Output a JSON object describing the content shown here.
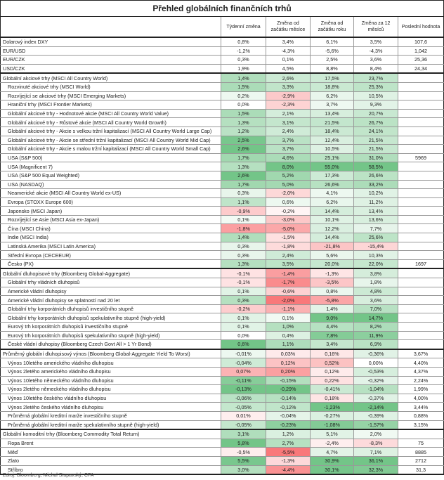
{
  "title": "Přehled globálních finančních trhů",
  "columns": [
    "Týdenní změna",
    "Změna od začátku měsíce",
    "Změna od začátku roku",
    "Změna za 12 měsíců",
    "Poslední hodnota"
  ],
  "colors": {
    "green": "#63be7b",
    "red": "#f8696b",
    "neutral": "#ffffff"
  },
  "sections": [
    {
      "id": "fx",
      "colored": false,
      "rows": [
        [
          "Dolarový index DXY",
          "0,8%",
          "3,4%",
          "6,1%",
          "3,5%",
          "107,6"
        ],
        [
          "EUR/USD",
          "-1,2%",
          "-4,3%",
          "-5,6%",
          "-4,3%",
          "1,042"
        ],
        [
          "EUR/CZK",
          "0,3%",
          "0,1%",
          "2,5%",
          "3,6%",
          "25,36"
        ],
        [
          "USD/CZK",
          "1,9%",
          "4,5%",
          "8,8%",
          "8,4%",
          "24,34"
        ]
      ]
    },
    {
      "id": "equity",
      "colored": true,
      "rows": [
        [
          "Globální akciové trhy (MSCI All Country World)",
          "1,4%",
          "2,6%",
          "17,5%",
          "23,7%",
          ""
        ],
        [
          "Rozvinuté akciové trhy (MSCI World)",
          "1,5%",
          "3,3%",
          "18,8%",
          "25,3%",
          ""
        ],
        [
          "Rozvíjející se akciové trhy (MSCI Emerging Markets)",
          "0,2%",
          "-2,9%",
          "6,2%",
          "10,5%",
          ""
        ],
        [
          "Hraniční trhy (MSCI Frontier Markets)",
          "0,0%",
          "-2,3%",
          "3,7%",
          "9,3%",
          ""
        ],
        [
          "Globální akciové trhy - Hodnotové akcie (MSCI All Country World Value)",
          "1,5%",
          "2,1%",
          "13,4%",
          "20,7%",
          ""
        ],
        [
          "Globální akciové trhy - Růstové akcie (MSCI All Country World Growth)",
          "1,3%",
          "3,1%",
          "21,5%",
          "26,7%",
          ""
        ],
        [
          "Globální akciové trhy - Akcie s velkou tržní kapitalizací (MSCI All Country World Large Cap)",
          "1,2%",
          "2,4%",
          "18,4%",
          "24,1%",
          ""
        ],
        [
          "Globální akciové trhy - Akcie se střední tržní kapitalizací (MSCI All Country World Mid Cap)",
          "2,5%",
          "3,7%",
          "12,4%",
          "21,5%",
          ""
        ],
        [
          "Globální akciové trhy - Akcie s malou tržní kapitalizací (MSCI All Country World Small Cap)",
          "2,6%",
          "3,7%",
          "10,5%",
          "21,5%",
          ""
        ],
        [
          "USA (S&P 500)",
          "1,7%",
          "4,6%",
          "25,1%",
          "31,0%",
          "5969"
        ],
        [
          "USA (Magnificent 7)",
          "1,3%",
          "8,0%",
          "55,0%",
          "58,5%",
          ""
        ],
        [
          "USA (S&P 500 Equal Weighted)",
          "2,6%",
          "5,2%",
          "17,3%",
          "26,6%",
          ""
        ],
        [
          "USA (NASDAQ)",
          "1,7%",
          "5,0%",
          "26,6%",
          "33,2%",
          ""
        ],
        [
          "Neamerické akcie (MSCI All Country World ex-US)",
          "0,3%",
          "-2,0%",
          "4,1%",
          "10,2%",
          ""
        ],
        [
          "Evropa (STOXX Europe 600)",
          "1,1%",
          "0,6%",
          "6,2%",
          "11,2%",
          ""
        ],
        [
          "Japonsko (MSCI Japan)",
          "-0,9%",
          "-0,2%",
          "14,4%",
          "13,4%",
          ""
        ],
        [
          "Rozvíjející se Asie (MSCI Asia ex-Japan)",
          "0,1%",
          "-3,0%",
          "10,1%",
          "13,6%",
          ""
        ],
        [
          "Čína (MSCI China)",
          "-1,8%",
          "-5,0%",
          "12,2%",
          "7,7%",
          ""
        ],
        [
          "Indie (MSCI India)",
          "1,4%",
          "-1,5%",
          "14,4%",
          "25,6%",
          ""
        ],
        [
          "Latinská Amerika (MSCI Latin America)",
          "0,3%",
          "-1,8%",
          "-21,8%",
          "-15,4%",
          ""
        ],
        [
          "Střední Evropa (CECEEUR)",
          "0,3%",
          "2,4%",
          "5,6%",
          "10,3%",
          ""
        ],
        [
          "Česko (PX)",
          "1,3%",
          "3,5%",
          "20,0%",
          "22,0%",
          "1697"
        ]
      ]
    },
    {
      "id": "bonds",
      "colored": true,
      "rows": [
        [
          "Globální dluhopisové trhy (Bloomberg Global-Aggregate)",
          "-0,1%",
          "-1,4%",
          "-1,3%",
          "3,8%",
          ""
        ],
        [
          "Globální trhy vládních dluhopisů",
          "-0,1%",
          "-1,7%",
          "-3,5%",
          "1,8%",
          ""
        ],
        [
          "Americké vládní dluhopisy",
          "0,1%",
          "-0,6%",
          "0,8%",
          "4,8%",
          ""
        ],
        [
          "Americké vládní dluhopisy se splatností nad 20 let",
          "0,3%",
          "-2,0%",
          "-5,8%",
          "3,6%",
          ""
        ],
        [
          "Globální trhy korporátních dluhopisů investičního stupně",
          "-0,2%",
          "-1,1%",
          "1,4%",
          "7,0%",
          ""
        ],
        [
          "Globální trhy korporátních dluhopisů spekulativního stupně (high-yield)",
          "0,1%",
          "0,1%",
          "9,0%",
          "14,7%",
          ""
        ],
        [
          "Eurový trh korporátních dluhopisů investičního stupně",
          "0,1%",
          "1,0%",
          "4,4%",
          "8,2%",
          ""
        ],
        [
          "Eurový trh korporátních dluhopisů spekulativního stupně (high-yield)",
          "0,0%",
          "0,4%",
          "7,8%",
          "11,9%",
          ""
        ],
        [
          "České vládní dluhopisy (Bloomberg Czech Govt All > 1 Yr Bond)",
          "0,6%",
          "1,1%",
          "3,4%",
          "6,9%",
          ""
        ]
      ]
    },
    {
      "id": "yields",
      "colored": true,
      "inverted": true,
      "rows": [
        [
          "Průměrný globální dluhopisový výnos (Bloomberg Global-Aggregate Yield To Worst)",
          "-0,01%",
          "0,03%",
          "0,16%",
          "-0,36%",
          "3,67%"
        ],
        [
          "Výnos 10letého amerického vládního dluhopisu",
          "-0,04%",
          "0,12%",
          "0,52%",
          "0,00%",
          "4,40%"
        ],
        [
          "Výnos 2letého amerického vládního dluhopisu",
          "0,07%",
          "0,20%",
          "0,12%",
          "-0,53%",
          "4,37%"
        ],
        [
          "Výnos 10letého německého vládního dluhopisu",
          "-0,11%",
          "-0,15%",
          "0,22%",
          "-0,32%",
          "2,24%"
        ],
        [
          "Výnos 2letého německého vládního dluhopisu",
          "-0,13%",
          "-0,29%",
          "-0,41%",
          "-1,04%",
          "1,99%"
        ],
        [
          "Výnos 10letého českého vládního dluhopisu",
          "-0,06%",
          "-0,14%",
          "0,18%",
          "-0,37%",
          "4,00%"
        ],
        [
          "Výnos 2letého českého vládního dluhopisu",
          "-0,05%",
          "-0,12%",
          "-1,23%",
          "-2,14%",
          "3,44%"
        ],
        [
          "Průměrná globální kreditní marže investičního stupně",
          "0,01%",
          "-0,04%",
          "-0,27%",
          "-0,39%",
          "0,88%"
        ],
        [
          "Průměrná globální kreditní marže spekulativního stupně (high-yield)",
          "-0,05%",
          "-0,23%",
          "-1,08%",
          "-1,57%",
          "3,15%"
        ]
      ]
    },
    {
      "id": "commodities",
      "colored": true,
      "rows": [
        [
          "Globální komoditní trhy (Bloomberg Commodity Total Return)",
          "3,1%",
          "1,2%",
          "5,1%",
          "2,0%",
          ""
        ],
        [
          "Ropa Brent",
          "5,8%",
          "2,7%",
          "-2,4%",
          "-8,3%",
          "75"
        ],
        [
          "Měď",
          "-0,5%",
          "-5,5%",
          "4,7%",
          "7,1%",
          "8885"
        ],
        [
          "Zlato",
          "5,5%",
          "-1,3%",
          "30,9%",
          "36,1%",
          "2712"
        ],
        [
          "Stříbro",
          "3,0%",
          "-4,4%",
          "30,1%",
          "32,3%",
          "31,3"
        ]
      ]
    }
  ],
  "source": "Zdroj: Bloomberg; Michal Stupavský, CFA"
}
